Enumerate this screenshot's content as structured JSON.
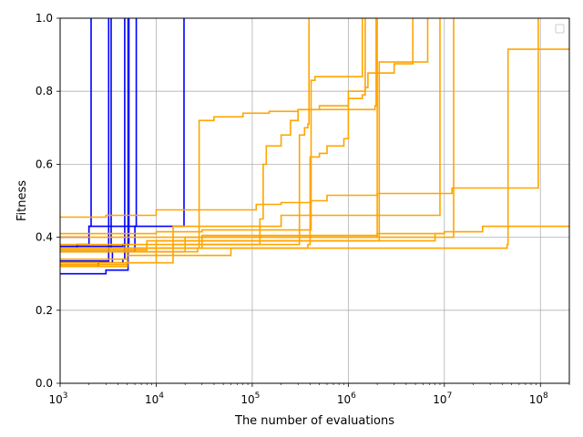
{
  "chart_data": {
    "type": "line",
    "title": "",
    "xlabel": "The number of evaluations",
    "ylabel": "Fitness",
    "xscale": "log",
    "xlim": [
      1000,
      200000000
    ],
    "ylim": [
      0.0,
      1.0
    ],
    "grid": true,
    "legend": "top-right (empty)",
    "x_ticks": [
      {
        "value": 1000,
        "base": "10",
        "exp": "3"
      },
      {
        "value": 10000,
        "base": "10",
        "exp": "4"
      },
      {
        "value": 100000,
        "base": "10",
        "exp": "5"
      },
      {
        "value": 1000000,
        "base": "10",
        "exp": "6"
      },
      {
        "value": 10000000,
        "base": "10",
        "exp": "7"
      },
      {
        "value": 100000000,
        "base": "10",
        "exp": "8"
      }
    ],
    "y_ticks": [
      {
        "value": 0.0,
        "label": "0.0"
      },
      {
        "value": 0.2,
        "label": "0.2"
      },
      {
        "value": 0.4,
        "label": "0.4"
      },
      {
        "value": 0.6,
        "label": "0.6"
      },
      {
        "value": 0.8,
        "label": "0.8"
      },
      {
        "value": 1.0,
        "label": "1.0"
      }
    ],
    "series": [
      {
        "color": "#0000ff",
        "points": [
          [
            1000,
            0.37
          ],
          [
            1500,
            0.38
          ],
          [
            2000,
            0.43
          ],
          [
            2100,
            1.0
          ]
        ]
      },
      {
        "color": "#0000ff",
        "points": [
          [
            1000,
            0.335
          ],
          [
            3000,
            0.335
          ],
          [
            3200,
            1.0
          ]
        ]
      },
      {
        "color": "#0000ff",
        "points": [
          [
            1000,
            0.3
          ],
          [
            2000,
            0.3
          ],
          [
            3000,
            0.31
          ],
          [
            5000,
            0.31
          ],
          [
            5100,
            1.0
          ]
        ]
      },
      {
        "color": "#0000ff",
        "points": [
          [
            1000,
            0.32
          ],
          [
            2500,
            0.33
          ],
          [
            4500,
            0.34
          ],
          [
            4700,
            1.0
          ]
        ]
      },
      {
        "color": "#0000ff",
        "points": [
          [
            1000,
            0.33
          ],
          [
            3000,
            0.33
          ],
          [
            3500,
            0.36
          ],
          [
            6000,
            0.43
          ],
          [
            6200,
            1.0
          ]
        ]
      },
      {
        "color": "#0000ff",
        "points": [
          [
            1000,
            0.375
          ],
          [
            4500,
            0.38
          ],
          [
            5200,
            1.0
          ]
        ]
      },
      {
        "color": "#0000ff",
        "points": [
          [
            1000,
            0.36
          ],
          [
            3200,
            0.37
          ],
          [
            3400,
            1.0
          ]
        ]
      },
      {
        "color": "#0000ff",
        "points": [
          [
            1000,
            0.4
          ],
          [
            2000,
            0.43
          ],
          [
            8000,
            0.43
          ],
          [
            15000,
            0.43
          ],
          [
            19000,
            0.43
          ],
          [
            19500,
            1.0
          ]
        ]
      },
      {
        "color": "#ffa500",
        "points": [
          [
            1000,
            0.455
          ],
          [
            3000,
            0.46
          ],
          [
            10000,
            0.475
          ],
          [
            100000,
            0.475
          ],
          [
            110000,
            0.49
          ],
          [
            200000,
            0.495
          ],
          [
            400000,
            0.5
          ],
          [
            600000,
            0.515
          ],
          [
            2000000,
            0.52
          ],
          [
            8000000,
            0.52
          ],
          [
            12000000,
            0.535
          ],
          [
            90000000,
            0.535
          ],
          [
            95000000,
            1.0
          ]
        ]
      },
      {
        "color": "#ffa500",
        "points": [
          [
            1000,
            0.32
          ],
          [
            5000,
            0.35
          ],
          [
            10000,
            0.36
          ],
          [
            27000,
            0.37
          ],
          [
            28000,
            0.72
          ],
          [
            40000,
            0.73
          ],
          [
            80000,
            0.74
          ],
          [
            150000,
            0.745
          ],
          [
            300000,
            0.75
          ],
          [
            500000,
            0.76
          ],
          [
            1000000,
            0.78
          ],
          [
            1400000,
            0.79
          ],
          [
            1500000,
            1.0
          ]
        ]
      },
      {
        "color": "#ffa500",
        "points": [
          [
            1000,
            0.37
          ],
          [
            15000,
            0.38
          ],
          [
            100000,
            0.38
          ],
          [
            120000,
            0.45
          ],
          [
            130000,
            0.6
          ],
          [
            140000,
            0.65
          ],
          [
            200000,
            0.68
          ],
          [
            250000,
            0.72
          ],
          [
            300000,
            0.75
          ],
          [
            1000000,
            0.75
          ],
          [
            1900000,
            0.76
          ],
          [
            1950000,
            1.0
          ]
        ]
      },
      {
        "color": "#ffa500",
        "points": [
          [
            1000,
            0.36
          ],
          [
            10000,
            0.38
          ],
          [
            300000,
            0.38
          ],
          [
            310000,
            0.68
          ],
          [
            350000,
            0.7
          ],
          [
            380000,
            0.71
          ],
          [
            390000,
            1.0
          ]
        ]
      },
      {
        "color": "#ffa500",
        "points": [
          [
            1000,
            0.34
          ],
          [
            5000,
            0.37
          ],
          [
            380000,
            0.38
          ],
          [
            400000,
            0.62
          ],
          [
            500000,
            0.63
          ],
          [
            600000,
            0.65
          ],
          [
            900000,
            0.67
          ],
          [
            1000000,
            0.8
          ],
          [
            1500000,
            0.81
          ],
          [
            1600000,
            0.85
          ],
          [
            2000000,
            1.0
          ]
        ]
      },
      {
        "color": "#ffa500",
        "points": [
          [
            1000,
            0.38
          ],
          [
            10000,
            0.39
          ],
          [
            100000,
            0.39
          ],
          [
            600000,
            0.39
          ],
          [
            1000000,
            0.39
          ],
          [
            2000000,
            0.39
          ],
          [
            2100000,
            0.88
          ],
          [
            3000000,
            0.88
          ],
          [
            5000000,
            0.88
          ],
          [
            6500000,
            0.88
          ],
          [
            6700000,
            1.0
          ]
        ]
      },
      {
        "color": "#ffa500",
        "points": [
          [
            1000,
            0.4
          ],
          [
            20000,
            0.4
          ],
          [
            1900000,
            0.4
          ],
          [
            2000000,
            0.85
          ],
          [
            2900000,
            0.85
          ],
          [
            3000000,
            0.875
          ],
          [
            4500000,
            0.875
          ],
          [
            4700000,
            1.0
          ]
        ]
      },
      {
        "color": "#ffa500",
        "points": [
          [
            1000,
            0.41
          ],
          [
            10000,
            0.415
          ],
          [
            30000,
            0.42
          ],
          [
            400000,
            0.42
          ],
          [
            410000,
            0.83
          ],
          [
            450000,
            0.84
          ],
          [
            1300000,
            0.84
          ],
          [
            1400000,
            1.0
          ]
        ]
      },
      {
        "color": "#ffa500",
        "points": [
          [
            1000,
            0.37
          ],
          [
            30000,
            0.405
          ],
          [
            600000,
            0.405
          ],
          [
            2000000,
            0.41
          ],
          [
            8000000,
            0.41
          ],
          [
            10000000,
            0.415
          ],
          [
            25000000,
            0.43
          ],
          [
            200000000,
            0.43
          ]
        ]
      },
      {
        "color": "#ffa500",
        "points": [
          [
            1000,
            0.325
          ],
          [
            5000,
            0.33
          ],
          [
            10000,
            0.35
          ],
          [
            60000,
            0.37
          ],
          [
            45000000,
            0.38
          ],
          [
            46000000,
            0.915
          ],
          [
            200000000,
            0.915
          ]
        ]
      },
      {
        "color": "#ffa500",
        "points": [
          [
            1000,
            0.33
          ],
          [
            15000,
            0.43
          ],
          [
            200000,
            0.46
          ],
          [
            600000,
            0.46
          ],
          [
            8500000,
            0.46
          ],
          [
            9000000,
            1.0
          ]
        ]
      },
      {
        "color": "#ffa500",
        "points": [
          [
            1000,
            0.365
          ],
          [
            8000,
            0.39
          ],
          [
            100000,
            0.39
          ],
          [
            2000000,
            0.39
          ],
          [
            7000000,
            0.39
          ],
          [
            8000000,
            0.4
          ],
          [
            12000000,
            0.4
          ],
          [
            12500000,
            1.0
          ]
        ]
      },
      {
        "color": "#ffa500",
        "points": [
          [
            1000,
            0.36
          ],
          [
            20000,
            0.4
          ],
          [
            600000,
            0.4
          ],
          [
            2000000,
            0.4
          ],
          [
            6000000,
            0.4
          ],
          [
            8000000,
            0.41
          ],
          [
            10000000,
            0.41
          ]
        ]
      }
    ]
  }
}
